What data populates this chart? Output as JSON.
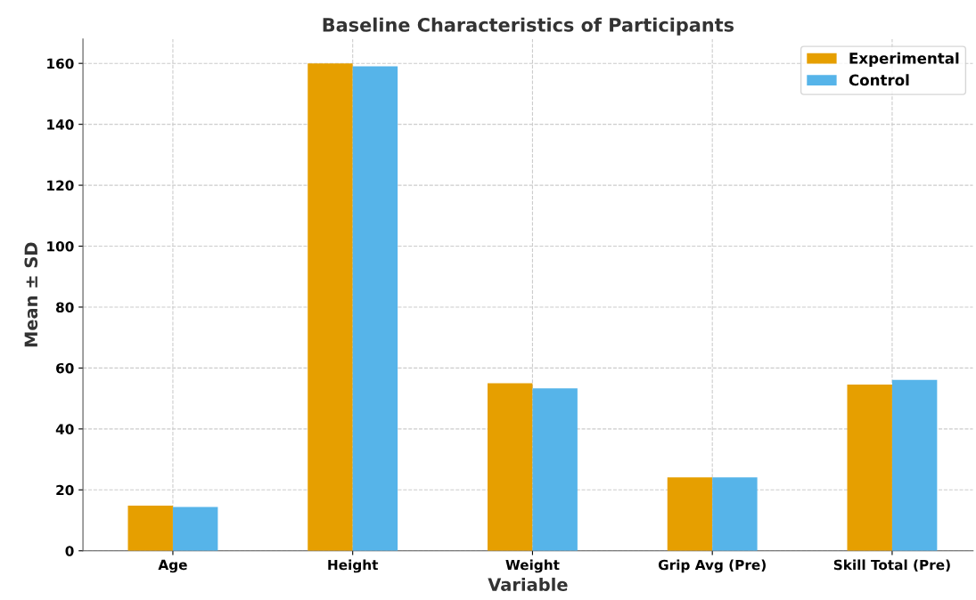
{
  "chart_data": {
    "type": "bar",
    "title": "Baseline Characteristics of Participants",
    "xlabel": "Variable",
    "ylabel": "Mean ± SD",
    "categories": [
      "Age",
      "Height",
      "Weight",
      "Grip Avg (Pre)",
      "Skill Total (Pre)"
    ],
    "series": [
      {
        "name": "Experimental",
        "color": "#e69f00",
        "values": [
          14.8,
          160,
          55,
          24.1,
          54.6
        ]
      },
      {
        "name": "Control",
        "color": "#56b4e9",
        "values": [
          14.4,
          159,
          53.3,
          24.1,
          56.1
        ]
      }
    ],
    "ylim": [
      0,
      168
    ],
    "yticks": [
      0,
      20,
      40,
      60,
      80,
      100,
      120,
      140,
      160
    ],
    "grid": true,
    "legend": "top right"
  }
}
